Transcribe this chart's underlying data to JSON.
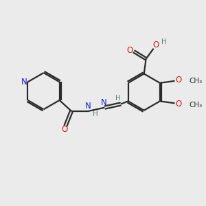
{
  "background_color": "#ebebeb",
  "bond_color": "#2a2a2a",
  "n_color": "#1a1acc",
  "o_color": "#cc1a1a",
  "h_color": "#5a8080",
  "bond_width": 1.6,
  "figsize": [
    3.0,
    3.0
  ],
  "dpi": 100,
  "xlim": [
    0,
    10
  ],
  "ylim": [
    0,
    10
  ]
}
